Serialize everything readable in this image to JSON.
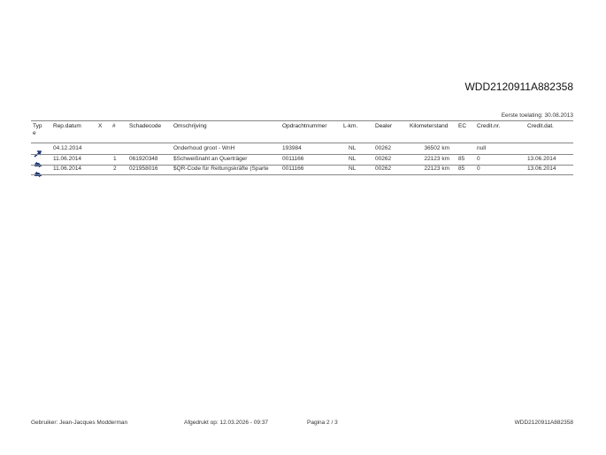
{
  "title": "WDD2120911A882358",
  "first_registration": "Eerste toelating: 30.08.2013",
  "columns": [
    "Typ\ne",
    "Rep.datum",
    "X",
    "#",
    "Schadecode",
    "Omschrijving",
    "Opdrachtnummer",
    "L-km.",
    "Dealer",
    "Kilometerstand",
    "EC",
    "Credit.nr.",
    "Credit.dat."
  ],
  "rows": [
    {
      "icon": "wrench-icon",
      "rep_datum": "04.12.2014",
      "x": "",
      "nr": "",
      "schadecode": "",
      "omschrijving": "Onderhoud groot - WnH",
      "opdracht": "193984",
      "lkm": "NL",
      "dealer": "00262",
      "km": "36502 km",
      "ec": "",
      "credit_nr": "null",
      "credit_dat": ""
    },
    {
      "icon": "car-repair-icon",
      "rep_datum": "11.06.2014",
      "x": "",
      "nr": "1",
      "schadecode": "061920348",
      "omschrijving": "$Schweißnaht an Querträger",
      "opdracht": "0011166",
      "lkm": "NL",
      "dealer": "00262",
      "km": "22123 km",
      "ec": "85",
      "credit_nr": "0",
      "credit_dat": "13.06.2014"
    },
    {
      "icon": "car-repair-icon",
      "rep_datum": "11.06.2014",
      "x": "",
      "nr": "2",
      "schadecode": "021958016",
      "omschrijving": "$QR-Code für Rettungskräfte (Sparte",
      "opdracht": "0011166",
      "lkm": "NL",
      "dealer": "00262",
      "km": "22123 km",
      "ec": "85",
      "credit_nr": "0",
      "credit_dat": "13.06.2014"
    }
  ],
  "footer": {
    "user": "Gebruiker: Jean-Jacques Modderman",
    "printed": "Afgedrukt op: 12.03.2026 - 09:37",
    "page": "Pagina 2 / 3",
    "vin": "WDD2120911A882358"
  },
  "colors": {
    "icon": "#1f3a7a"
  }
}
